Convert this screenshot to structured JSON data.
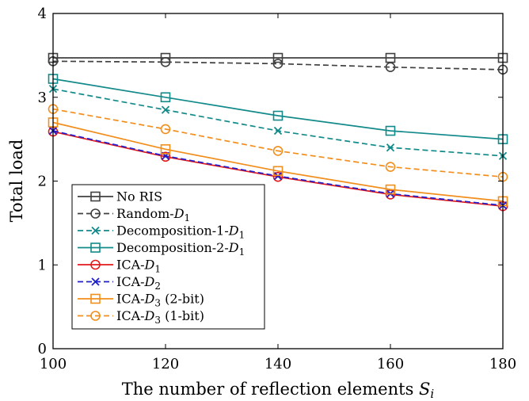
{
  "chart_data": {
    "type": "line",
    "title": "",
    "xlabel": "The number of reflection elements S_i",
    "xlabel_parts": {
      "main": "The number of reflection elements ",
      "var": "S",
      "sub": "i"
    },
    "ylabel": "Total load",
    "xlim": [
      100,
      180
    ],
    "ylim": [
      0,
      4
    ],
    "x_ticks": [
      "100",
      "120",
      "140",
      "160",
      "180"
    ],
    "y_ticks": [
      "0",
      "1",
      "2",
      "3",
      "4"
    ],
    "grid": false,
    "legend_position": "bottom-left",
    "x": [
      100,
      120,
      140,
      160,
      180
    ],
    "series": [
      {
        "name": "No RIS",
        "label_main": "No RIS",
        "label_sym": "",
        "label_sub": "",
        "label_suffix": "",
        "color": "#404040",
        "dash": "solid",
        "marker": "square",
        "values": [
          3.47,
          3.47,
          3.47,
          3.47,
          3.47
        ]
      },
      {
        "name": "Random-D1",
        "label_main": "Random-",
        "label_sym": "D",
        "label_sub": "1",
        "label_suffix": "",
        "color": "#404040",
        "dash": "dashed",
        "marker": "circle",
        "values": [
          3.43,
          3.42,
          3.4,
          3.36,
          3.33
        ]
      },
      {
        "name": "Decomposition-1-D1",
        "label_main": "Decomposition-1-",
        "label_sym": "D",
        "label_sub": "1",
        "label_suffix": "",
        "color": "#138a8a",
        "dash": "dashed",
        "marker": "x",
        "values": [
          3.1,
          2.85,
          2.6,
          2.4,
          2.3
        ]
      },
      {
        "name": "Decomposition-2-D1",
        "label_main": "Decomposition-2-",
        "label_sym": "D",
        "label_sub": "1",
        "label_suffix": "",
        "color": "#138a8a",
        "dash": "solid",
        "marker": "square",
        "values": [
          3.22,
          3.0,
          2.78,
          2.6,
          2.5
        ]
      },
      {
        "name": "ICA-D1",
        "label_main": "ICA-",
        "label_sym": "D",
        "label_sub": "1",
        "label_suffix": "",
        "color": "#e31a1c",
        "dash": "solid",
        "marker": "circle",
        "values": [
          2.59,
          2.29,
          2.05,
          1.84,
          1.7
        ]
      },
      {
        "name": "ICA-D2",
        "label_main": "ICA-",
        "label_sym": "D",
        "label_sub": "2",
        "label_suffix": "",
        "color": "#1f1fcc",
        "dash": "dashed",
        "marker": "x",
        "values": [
          2.6,
          2.3,
          2.06,
          1.85,
          1.71
        ]
      },
      {
        "name": "ICA-D3 (2-bit)",
        "label_main": "ICA-",
        "label_sym": "D",
        "label_sub": "3",
        "label_suffix": " (2-bit)",
        "color": "#f28e1c",
        "dash": "solid",
        "marker": "square",
        "values": [
          2.7,
          2.38,
          2.12,
          1.9,
          1.76
        ]
      },
      {
        "name": "ICA-D3 (1-bit)",
        "label_main": "ICA-",
        "label_sym": "D",
        "label_sub": "3",
        "label_suffix": " (1-bit)",
        "color": "#f28e1c",
        "dash": "dashed",
        "marker": "circle",
        "values": [
          2.86,
          2.62,
          2.36,
          2.17,
          2.05
        ]
      }
    ]
  }
}
